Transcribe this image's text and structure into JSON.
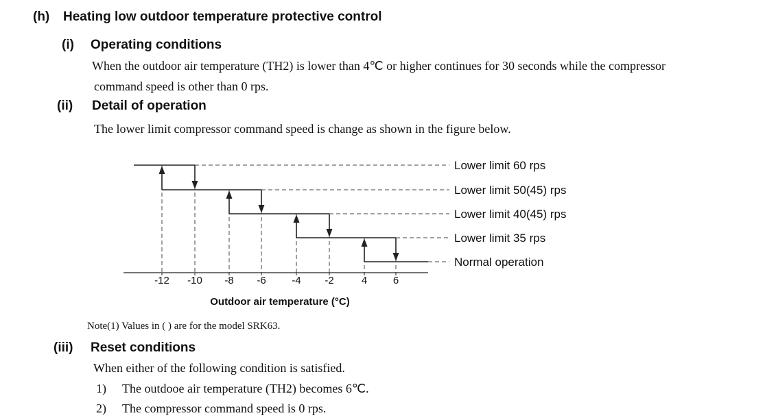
{
  "section": {
    "label": "(h)",
    "title": "Heating low outdoor temperature protective control"
  },
  "operating_conditions": {
    "label": "(i)",
    "title": "Operating conditions",
    "line1": "When the outdoor air temperature (TH2) is lower than 4℃ or higher continues for 30 seconds while the compressor",
    "line2": "command speed is other than 0 rps."
  },
  "detail": {
    "label": "(ii)",
    "title": "Detail of operation",
    "text": "The lower limit compressor command speed is change as shown in the figure below."
  },
  "chart_data": {
    "type": "line",
    "xlabel": "Outdoor air temperature (°C)",
    "x_ticks": [
      "-12",
      "-10",
      "-8",
      "-6",
      "-4",
      "-2",
      "4",
      "6"
    ],
    "levels": [
      {
        "label": "Lower limit 60 rps",
        "enter_below": -12,
        "reset_at": -10
      },
      {
        "label": "Lower limit 50(45) rps",
        "enter_below": -8,
        "reset_at": -6
      },
      {
        "label": "Lower limit 40(45) rps",
        "enter_below": -4,
        "reset_at": -2
      },
      {
        "label": "Lower limit 35 rps",
        "enter_below": 4,
        "reset_at": 6
      },
      {
        "label": "Normal operation"
      }
    ]
  },
  "note": "Note(1)  Values in (  ) are for the model SRK63.",
  "reset": {
    "label": "(iii)",
    "title": "Reset conditions",
    "intro": "When either of the following condition is satisfied.",
    "items": [
      {
        "num": "1)",
        "text": "The outdooe air temperature (TH2) becomes 6℃."
      },
      {
        "num": "2)",
        "text": "The compressor command speed is 0 rps."
      }
    ]
  }
}
